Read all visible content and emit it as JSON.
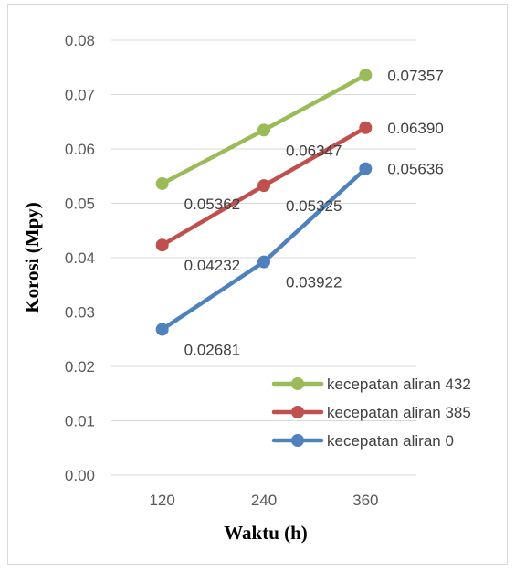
{
  "chart_data": {
    "type": "line",
    "title": "",
    "xlabel": "Waktu (h)",
    "ylabel": "Korosi (Mpy)",
    "categories": [
      "120",
      "240",
      "360"
    ],
    "ylim": [
      0,
      0.08
    ],
    "yticks": [
      "0.00",
      "0.01",
      "0.02",
      "0.03",
      "0.04",
      "0.05",
      "0.06",
      "0.07",
      "0.08"
    ],
    "grid": true,
    "legend_position": "bottom-right",
    "series": [
      {
        "name": "kecepatan aliran 432",
        "color": "#9bbb59",
        "values": [
          0.05362,
          0.06347,
          0.07357
        ],
        "labels": [
          "0.05362",
          "0.06347",
          "0.07357"
        ]
      },
      {
        "name": "kecepatan aliran 385",
        "color": "#c0504d",
        "values": [
          0.04232,
          0.05325,
          0.0639
        ],
        "labels": [
          "0.04232",
          "0.05325",
          "0.06390"
        ]
      },
      {
        "name": "kecepatan aliran 0",
        "color": "#4f81bd",
        "values": [
          0.02681,
          0.03922,
          0.05636
        ],
        "labels": [
          "0.02681",
          "0.03922",
          "0.05636"
        ]
      }
    ]
  }
}
